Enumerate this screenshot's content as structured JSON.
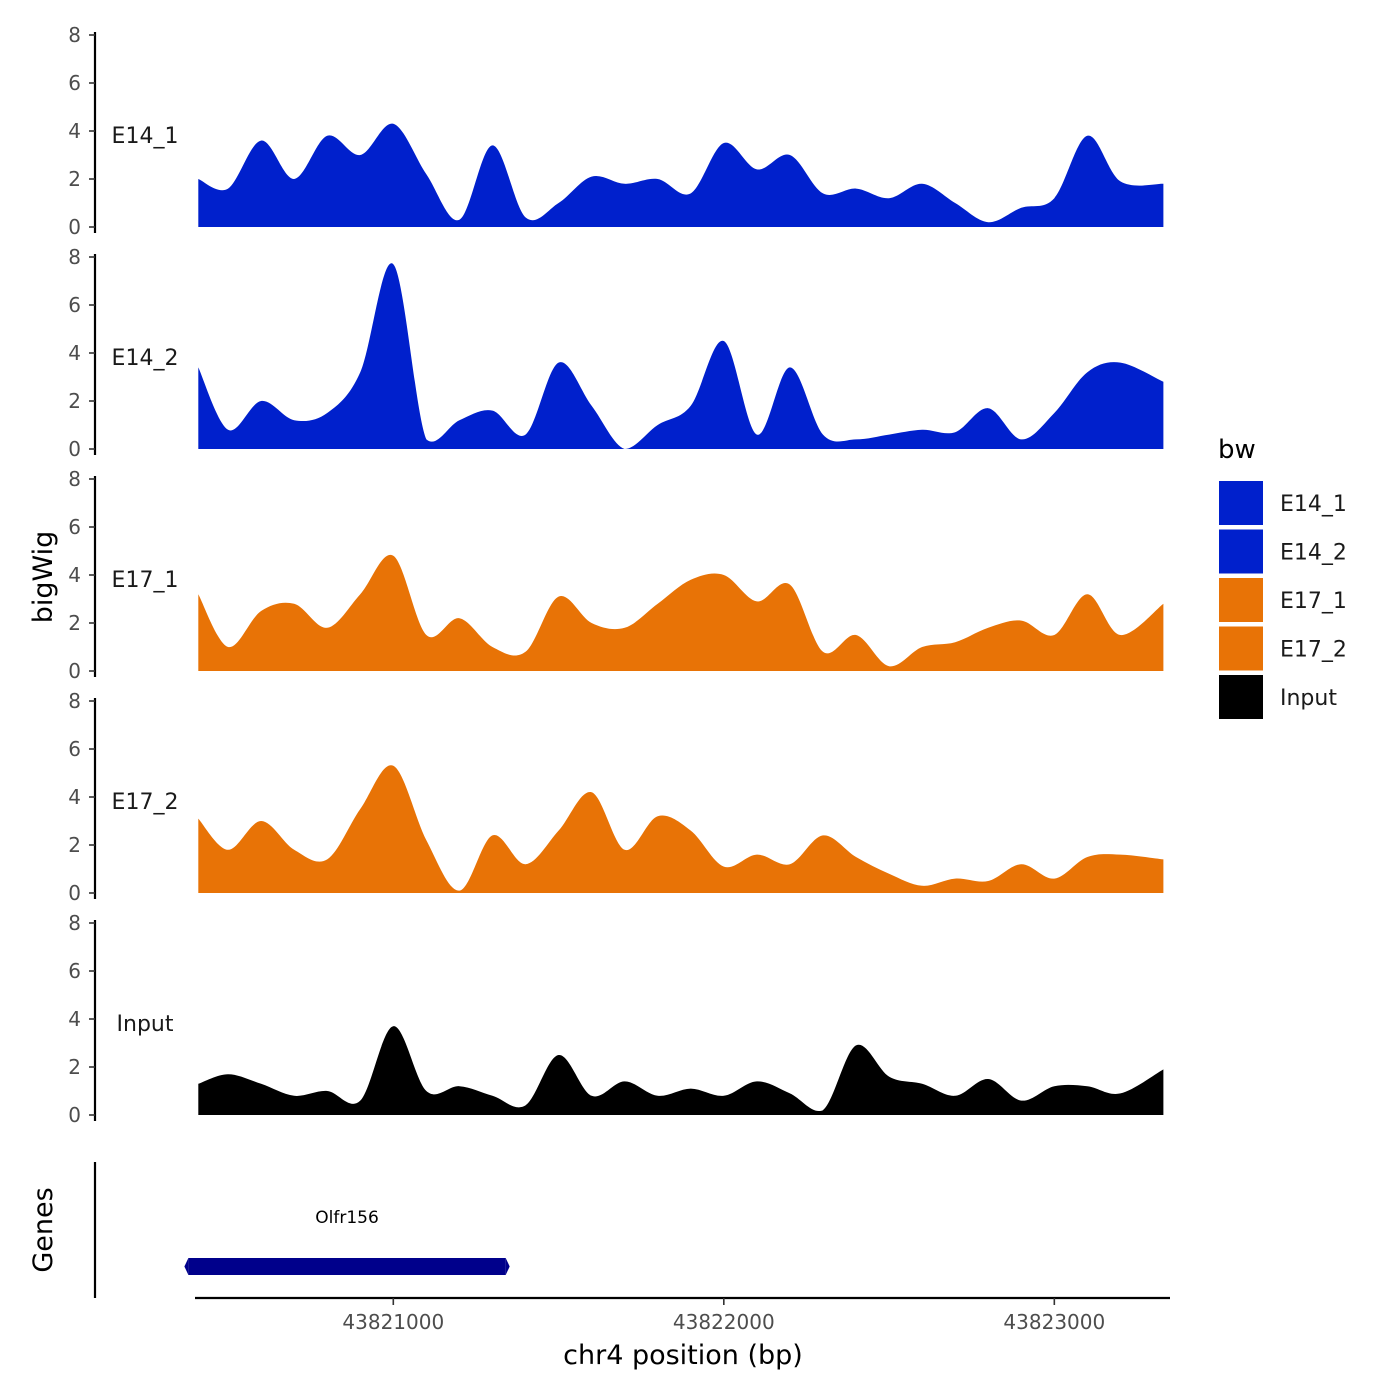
{
  "chart_data": {
    "type": "area",
    "ylabel": "bigWig",
    "xlabel": "chr4 position (bp)",
    "xlim": [
      43820400,
      43823350
    ],
    "x_ticks": [
      43821000,
      43822000,
      43823000
    ],
    "x_tick_labels": [
      "43821000",
      "43822000",
      "43823000"
    ],
    "ylim": [
      0,
      8
    ],
    "y_ticks": [
      0,
      2,
      4,
      6,
      8
    ],
    "y_tick_labels": [
      "0",
      "2",
      "4",
      "6",
      "8"
    ],
    "legend": {
      "title": "bw",
      "placement": "right",
      "entries": [
        {
          "name": "E14_1",
          "color": "#0020CC"
        },
        {
          "name": "E14_2",
          "color": "#0020CC"
        },
        {
          "name": "E17_1",
          "color": "#E87306"
        },
        {
          "name": "E17_2",
          "color": "#E87306"
        },
        {
          "name": "Input",
          "color": "#000000"
        }
      ]
    },
    "x": [
      43820410,
      43820500,
      43820600,
      43820700,
      43820800,
      43820900,
      43821000,
      43821100,
      43821200,
      43821300,
      43821400,
      43821500,
      43821600,
      43821700,
      43821800,
      43821900,
      43822000,
      43822100,
      43822200,
      43822300,
      43822400,
      43822500,
      43822600,
      43822700,
      43822800,
      43822900,
      43823000,
      43823100,
      43823200,
      43823330
    ],
    "series": [
      {
        "name": "E14_1",
        "color": "#0020CC",
        "values": [
          2.0,
          1.6,
          3.6,
          2.0,
          3.8,
          3.0,
          4.3,
          2.2,
          0.3,
          3.4,
          0.4,
          1.0,
          2.1,
          1.8,
          2.0,
          1.4,
          3.5,
          2.4,
          3.0,
          1.4,
          1.6,
          1.2,
          1.8,
          1.0,
          0.2,
          0.8,
          1.2,
          3.8,
          1.9,
          1.8
        ]
      },
      {
        "name": "E14_2",
        "color": "#0020CC",
        "values": [
          3.4,
          0.8,
          2.0,
          1.2,
          1.5,
          3.2,
          7.7,
          0.4,
          1.2,
          1.6,
          0.6,
          3.6,
          1.8,
          0.0,
          1.0,
          1.8,
          4.5,
          0.6,
          3.4,
          0.6,
          0.4,
          0.6,
          0.8,
          0.7,
          1.7,
          0.4,
          1.5,
          3.2,
          3.6,
          2.8
        ]
      },
      {
        "name": "E17_1",
        "color": "#E87306",
        "values": [
          3.2,
          1.0,
          2.5,
          2.8,
          1.8,
          3.2,
          4.8,
          1.5,
          2.2,
          1.0,
          0.8,
          3.1,
          2.0,
          1.8,
          2.8,
          3.8,
          4.0,
          2.9,
          3.6,
          0.8,
          1.5,
          0.2,
          1.0,
          1.2,
          1.8,
          2.1,
          1.5,
          3.2,
          1.5,
          2.8
        ]
      },
      {
        "name": "E17_2",
        "color": "#E87306",
        "values": [
          3.1,
          1.8,
          3.0,
          1.8,
          1.4,
          3.5,
          5.3,
          2.2,
          0.1,
          2.4,
          1.2,
          2.6,
          4.2,
          1.8,
          3.2,
          2.6,
          1.1,
          1.6,
          1.2,
          2.4,
          1.5,
          0.8,
          0.3,
          0.6,
          0.5,
          1.2,
          0.6,
          1.5,
          1.6,
          1.4
        ]
      },
      {
        "name": "Input",
        "color": "#000000",
        "values": [
          1.3,
          1.7,
          1.3,
          0.8,
          1.0,
          0.6,
          3.7,
          1.0,
          1.2,
          0.8,
          0.4,
          2.5,
          0.8,
          1.4,
          0.8,
          1.1,
          0.8,
          1.4,
          0.9,
          0.2,
          2.9,
          1.6,
          1.3,
          0.8,
          1.5,
          0.6,
          1.2,
          1.2,
          0.9,
          1.9
        ]
      }
    ],
    "genes": {
      "title": "Genes",
      "items": [
        {
          "name": "Olfr156",
          "start": 43820380,
          "end": 43821340,
          "color": "#00008B"
        }
      ]
    }
  }
}
